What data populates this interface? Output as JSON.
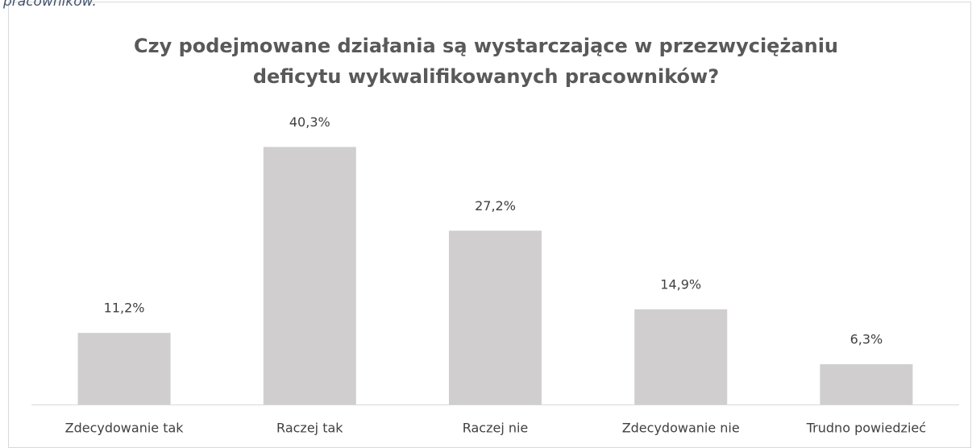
{
  "caption": "pracowników.",
  "chart_data": {
    "type": "bar",
    "title": [
      "Czy podejmowane działania są wystarczające w przezwyciężaniu",
      "deficytu wykwalifikowanych pracowników?"
    ],
    "categories": [
      "Zdecydowanie tak",
      "Raczej tak",
      "Raczej nie",
      "Zdecydowanie nie",
      "Trudno powiedzieć"
    ],
    "values": [
      11.2,
      40.3,
      27.2,
      14.9,
      6.3
    ],
    "value_labels": [
      "11,2%",
      "40,3%",
      "27,2%",
      "14,9%",
      "6,3%"
    ],
    "color": "#d0cece"
  }
}
